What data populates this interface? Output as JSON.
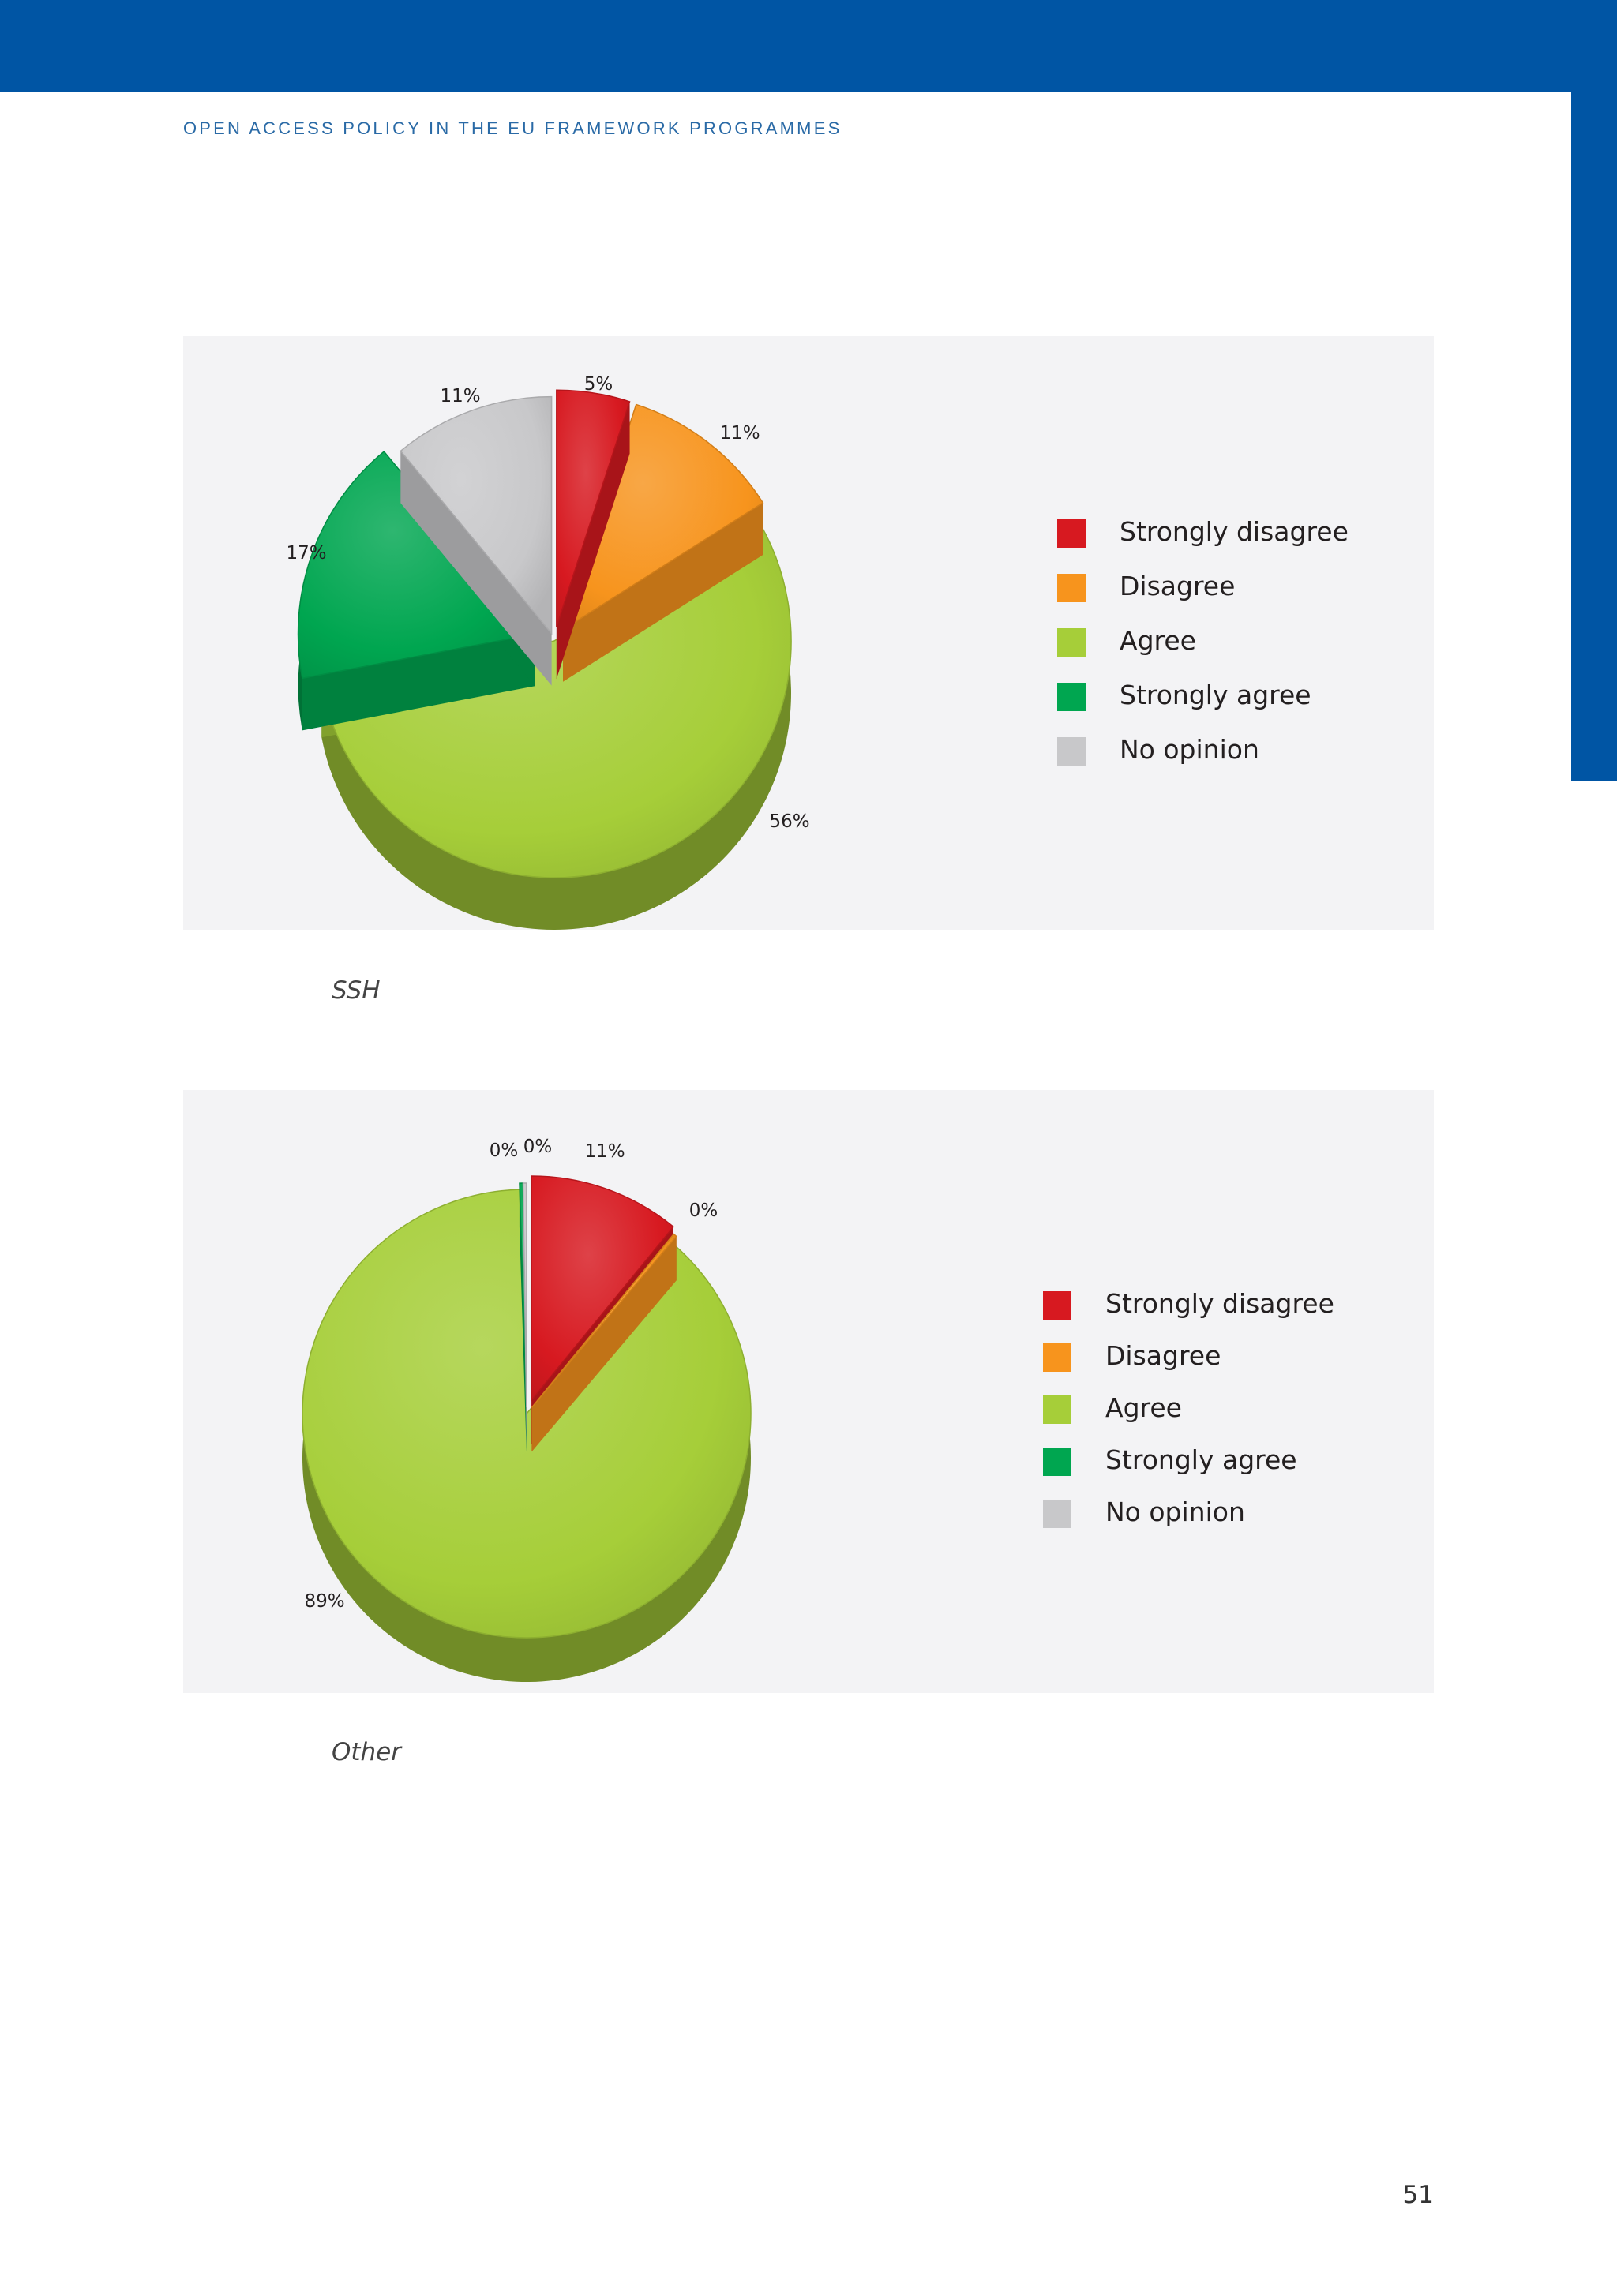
{
  "header": {
    "running_title": "OPEN ACCESS POLICY IN THE EU FRAMEWORK PROGRAMMES"
  },
  "colors": {
    "brand_blue": "#0055a4",
    "strongly_disagree": "#d71920",
    "disagree": "#f7941d",
    "agree": "#a6ce39",
    "strongly_agree": "#00a650",
    "no_opinion": "#c8c8ca"
  },
  "chart_data": [
    {
      "type": "pie",
      "title": "SSH",
      "categories": [
        "Strongly disagree",
        "Disagree",
        "Agree",
        "Strongly agree",
        "No opinion"
      ],
      "values": [
        5,
        11,
        56,
        17,
        11
      ],
      "value_labels": [
        "5%",
        "11%",
        "56%",
        "17%",
        "11%"
      ],
      "legend_position": "right",
      "caption": "SSH",
      "legend": [
        {
          "label": "Strongly disagree",
          "color": "#d71920"
        },
        {
          "label": "Disagree",
          "color": "#f7941d"
        },
        {
          "label": "Agree",
          "color": "#a6ce39"
        },
        {
          "label": "Strongly agree",
          "color": "#00a650"
        },
        {
          "label": "No opinion",
          "color": "#c8c8ca"
        }
      ]
    },
    {
      "type": "pie",
      "title": "Other",
      "categories": [
        "Strongly disagree",
        "Disagree",
        "Agree",
        "Strongly agree",
        "No opinion"
      ],
      "values": [
        11,
        0,
        89,
        0,
        0
      ],
      "value_labels": [
        "11%",
        "0%",
        "89%",
        "0%",
        "0%"
      ],
      "legend_position": "right",
      "caption": "Other",
      "legend": [
        {
          "label": "Strongly disagree",
          "color": "#d71920"
        },
        {
          "label": "Disagree",
          "color": "#f7941d"
        },
        {
          "label": "Agree",
          "color": "#a6ce39"
        },
        {
          "label": "Strongly agree",
          "color": "#00a650"
        },
        {
          "label": "No opinion",
          "color": "#c8c8ca"
        }
      ]
    }
  ],
  "footer": {
    "page_number": "51"
  }
}
